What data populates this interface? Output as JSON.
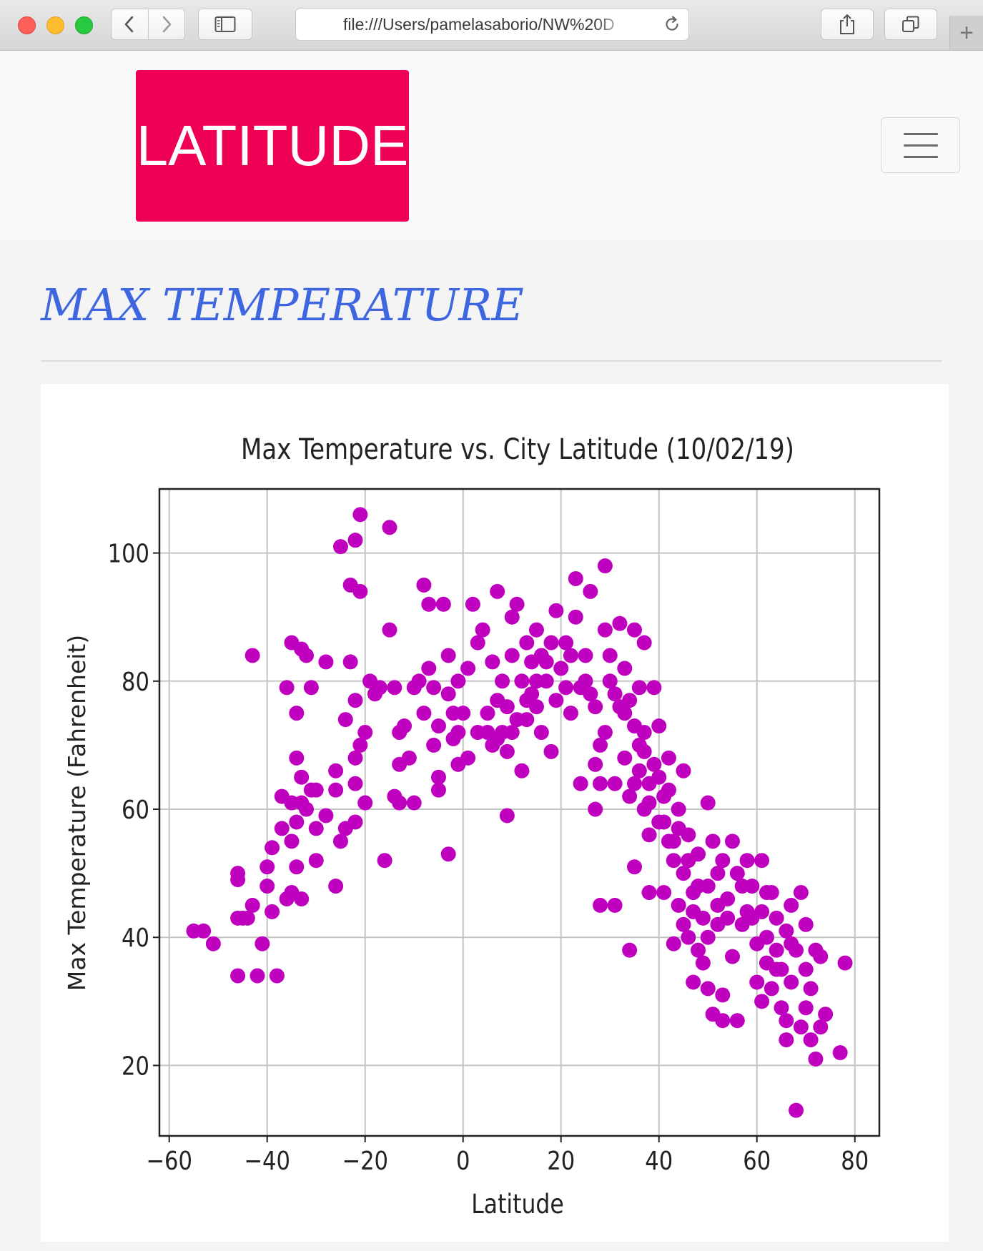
{
  "browser": {
    "address": "file:///Users/pamelasaborio/NW%20D",
    "new_tab_label": "+"
  },
  "navbar": {
    "brand": "LATITUDE",
    "brand_color": "#ee0055"
  },
  "page": {
    "title": "MAX TEMPERATURE",
    "title_color": "#3d66e0"
  },
  "icons": {
    "back": "chevron-left-icon",
    "forward": "chevron-right-icon",
    "sidebar": "sidebar-icon",
    "reload": "reload-icon",
    "share": "share-icon",
    "tabs": "tabs-icon",
    "menu": "hamburger-icon"
  },
  "chart_data": {
    "type": "scatter",
    "title": "Max Temperature vs. City Latitude (10/02/19)",
    "xlabel": "Latitude",
    "ylabel": "Max Temperature (Fahrenheit)",
    "xlim": [
      -62,
      85
    ],
    "ylim": [
      9,
      110
    ],
    "xticks": [
      -60,
      -40,
      -20,
      0,
      20,
      40,
      60,
      80
    ],
    "xtick_labels": [
      "−60",
      "−40",
      "−20",
      "0",
      "20",
      "40",
      "60",
      "80"
    ],
    "yticks": [
      20,
      40,
      60,
      80,
      100
    ],
    "ytick_labels": [
      "20",
      "40",
      "60",
      "80",
      "100"
    ],
    "grid": true,
    "marker_color": "#bf00bf",
    "series": [
      {
        "points": [
          [
            -55,
            41
          ],
          [
            -53,
            41
          ],
          [
            -51,
            39
          ],
          [
            -46,
            49
          ],
          [
            -46,
            50
          ],
          [
            -46,
            43
          ],
          [
            -45,
            43
          ],
          [
            -46,
            34
          ],
          [
            -43,
            45
          ],
          [
            -42,
            34
          ],
          [
            -43,
            84
          ],
          [
            -41,
            39
          ],
          [
            -40,
            51
          ],
          [
            -39,
            54
          ],
          [
            -40,
            48
          ],
          [
            -38,
            34
          ],
          [
            -37,
            57
          ],
          [
            -36,
            79
          ],
          [
            -35,
            86
          ],
          [
            -34,
            75
          ],
          [
            -33,
            85
          ],
          [
            -32,
            84
          ],
          [
            -34,
            68
          ],
          [
            -33,
            65
          ],
          [
            -33,
            61
          ],
          [
            -34,
            58
          ],
          [
            -35,
            55
          ],
          [
            -34,
            51
          ],
          [
            -35,
            47
          ],
          [
            -33,
            46
          ],
          [
            -36,
            46
          ],
          [
            -32,
            60
          ],
          [
            -31,
            79
          ],
          [
            -30,
            63
          ],
          [
            -30,
            52
          ],
          [
            -28,
            83
          ],
          [
            -26,
            66
          ],
          [
            -26,
            63
          ],
          [
            -25,
            55
          ],
          [
            -26,
            48
          ],
          [
            -25,
            101
          ],
          [
            -23,
            95
          ],
          [
            -22,
            102
          ],
          [
            -21,
            106
          ],
          [
            -21,
            94
          ],
          [
            -23,
            83
          ],
          [
            -24,
            74
          ],
          [
            -22,
            77
          ],
          [
            -22,
            68
          ],
          [
            -21,
            70
          ],
          [
            -22,
            64
          ],
          [
            -20,
            61
          ],
          [
            -22,
            58
          ],
          [
            -24,
            57
          ],
          [
            -19,
            80
          ],
          [
            -18,
            78
          ],
          [
            -16,
            52
          ],
          [
            -15,
            104
          ],
          [
            -15,
            88
          ],
          [
            -14,
            79
          ],
          [
            -13,
            72
          ],
          [
            -13,
            67
          ],
          [
            -14,
            62
          ],
          [
            -13,
            61
          ],
          [
            -11,
            68
          ],
          [
            -10,
            61
          ],
          [
            -9,
            80
          ],
          [
            -8,
            95
          ],
          [
            -7,
            82
          ],
          [
            -7,
            92
          ],
          [
            -6,
            79
          ],
          [
            -5,
            73
          ],
          [
            -5,
            65
          ],
          [
            -5,
            63
          ],
          [
            -4,
            92
          ],
          [
            -3,
            53
          ],
          [
            -3,
            84
          ],
          [
            -2,
            75
          ],
          [
            -2,
            71
          ],
          [
            -1,
            67
          ],
          [
            -1,
            80
          ],
          [
            0,
            75
          ],
          [
            1,
            82
          ],
          [
            2,
            92
          ],
          [
            3,
            72
          ],
          [
            3,
            86
          ],
          [
            4,
            88
          ],
          [
            5,
            75
          ],
          [
            6,
            70
          ],
          [
            6,
            83
          ],
          [
            7,
            94
          ],
          [
            7,
            77
          ],
          [
            8,
            72
          ],
          [
            8,
            80
          ],
          [
            9,
            59
          ],
          [
            9,
            69
          ],
          [
            10,
            72
          ],
          [
            10,
            84
          ],
          [
            10,
            90
          ],
          [
            11,
            74
          ],
          [
            11,
            92
          ],
          [
            12,
            66
          ],
          [
            12,
            80
          ],
          [
            13,
            86
          ],
          [
            13,
            77
          ],
          [
            14,
            83
          ],
          [
            14,
            78
          ],
          [
            15,
            88
          ],
          [
            15,
            76
          ],
          [
            16,
            72
          ],
          [
            16,
            84
          ],
          [
            17,
            80
          ],
          [
            18,
            69
          ],
          [
            18,
            86
          ],
          [
            19,
            91
          ],
          [
            19,
            77
          ],
          [
            20,
            82
          ],
          [
            21,
            79
          ],
          [
            22,
            75
          ],
          [
            22,
            84
          ],
          [
            23,
            96
          ],
          [
            23,
            90
          ],
          [
            24,
            64
          ],
          [
            24,
            79
          ],
          [
            25,
            84
          ],
          [
            26,
            94
          ],
          [
            26,
            78
          ],
          [
            27,
            67
          ],
          [
            27,
            60
          ],
          [
            28,
            45
          ],
          [
            28,
            70
          ],
          [
            28,
            64
          ],
          [
            29,
            98
          ],
          [
            29,
            88
          ],
          [
            30,
            84
          ],
          [
            30,
            80
          ],
          [
            31,
            45
          ],
          [
            31,
            64
          ],
          [
            32,
            76
          ],
          [
            32,
            89
          ],
          [
            33,
            68
          ],
          [
            33,
            82
          ],
          [
            34,
            62
          ],
          [
            34,
            77
          ],
          [
            34,
            38
          ],
          [
            35,
            51
          ],
          [
            35,
            88
          ],
          [
            35,
            73
          ],
          [
            36,
            66
          ],
          [
            36,
            79
          ],
          [
            37,
            60
          ],
          [
            37,
            72
          ],
          [
            37,
            86
          ],
          [
            38,
            56
          ],
          [
            38,
            47
          ],
          [
            38,
            64
          ],
          [
            39,
            67
          ],
          [
            39,
            79
          ],
          [
            40,
            73
          ],
          [
            40,
            58
          ],
          [
            41,
            62
          ],
          [
            41,
            47
          ],
          [
            42,
            68
          ],
          [
            42,
            55
          ],
          [
            43,
            52
          ],
          [
            43,
            39
          ],
          [
            44,
            60
          ],
          [
            44,
            45
          ],
          [
            45,
            66
          ],
          [
            45,
            50
          ],
          [
            46,
            56
          ],
          [
            46,
            40
          ],
          [
            47,
            33
          ],
          [
            47,
            47
          ],
          [
            48,
            53
          ],
          [
            48,
            38
          ],
          [
            49,
            43
          ],
          [
            49,
            36
          ],
          [
            50,
            61
          ],
          [
            50,
            48
          ],
          [
            50,
            32
          ],
          [
            51,
            55
          ],
          [
            51,
            28
          ],
          [
            52,
            42
          ],
          [
            52,
            50
          ],
          [
            53,
            27
          ],
          [
            53,
            31
          ],
          [
            54,
            46
          ],
          [
            55,
            55
          ],
          [
            55,
            37
          ],
          [
            56,
            27
          ],
          [
            57,
            48
          ],
          [
            58,
            52
          ],
          [
            59,
            43
          ],
          [
            60,
            39
          ],
          [
            60,
            33
          ],
          [
            61,
            30
          ],
          [
            61,
            52
          ],
          [
            62,
            47
          ],
          [
            62,
            36
          ],
          [
            63,
            32
          ],
          [
            64,
            43
          ],
          [
            64,
            38
          ],
          [
            65,
            29
          ],
          [
            65,
            35
          ],
          [
            66,
            27
          ],
          [
            66,
            41
          ],
          [
            66,
            24
          ],
          [
            67,
            45
          ],
          [
            67,
            33
          ],
          [
            68,
            13
          ],
          [
            68,
            38
          ],
          [
            69,
            26
          ],
          [
            69,
            47
          ],
          [
            70,
            29
          ],
          [
            70,
            35
          ],
          [
            71,
            32
          ],
          [
            71,
            24
          ],
          [
            72,
            21
          ],
          [
            72,
            38
          ],
          [
            73,
            26
          ],
          [
            73,
            37
          ],
          [
            74,
            28
          ],
          [
            77,
            22
          ],
          [
            78,
            36
          ],
          [
            56,
            50
          ],
          [
            63,
            47
          ],
          [
            58,
            44
          ],
          [
            62,
            40
          ],
          [
            52,
            45
          ],
          [
            48,
            48
          ],
          [
            46,
            52
          ],
          [
            44,
            57
          ],
          [
            42,
            63
          ],
          [
            40,
            65
          ],
          [
            36,
            70
          ],
          [
            33,
            75
          ],
          [
            31,
            78
          ],
          [
            29,
            72
          ],
          [
            27,
            76
          ],
          [
            25,
            80
          ],
          [
            21,
            86
          ],
          [
            17,
            83
          ],
          [
            15,
            80
          ],
          [
            13,
            74
          ],
          [
            9,
            76
          ],
          [
            7,
            71
          ],
          [
            5,
            72
          ],
          [
            1,
            68
          ],
          [
            -1,
            72
          ],
          [
            -3,
            78
          ],
          [
            -6,
            70
          ],
          [
            -8,
            75
          ],
          [
            -10,
            79
          ],
          [
            -12,
            73
          ],
          [
            -17,
            79
          ],
          [
            -20,
            72
          ],
          [
            -28,
            59
          ],
          [
            -30,
            57
          ],
          [
            -37,
            62
          ],
          [
            -35,
            61
          ],
          [
            -31,
            63
          ],
          [
            -39,
            44
          ],
          [
            -44,
            43
          ],
          [
            53,
            52
          ],
          [
            57,
            42
          ],
          [
            59,
            48
          ],
          [
            61,
            44
          ],
          [
            64,
            35
          ],
          [
            67,
            39
          ],
          [
            70,
            42
          ],
          [
            54,
            43
          ],
          [
            50,
            40
          ],
          [
            47,
            44
          ],
          [
            45,
            42
          ],
          [
            37,
            69
          ],
          [
            35,
            64
          ],
          [
            38,
            61
          ],
          [
            41,
            58
          ],
          [
            43,
            55
          ]
        ]
      }
    ]
  }
}
